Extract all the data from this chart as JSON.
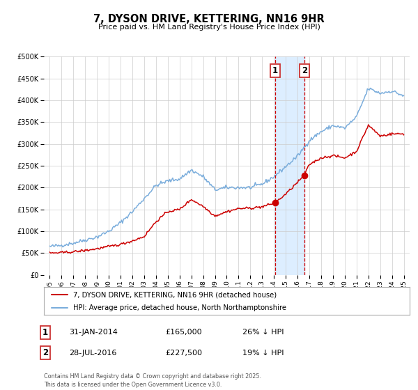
{
  "title": "7, DYSON DRIVE, KETTERING, NN16 9HR",
  "subtitle": "Price paid vs. HM Land Registry's House Price Index (HPI)",
  "background_color": "#ffffff",
  "plot_bg_color": "#ffffff",
  "grid_color": "#cccccc",
  "sale1_date": "31-JAN-2014",
  "sale1_price": 165000,
  "sale1_pct": "26% ↓ HPI",
  "sale2_date": "28-JUL-2016",
  "sale2_price": 227500,
  "sale2_pct": "19% ↓ HPI",
  "sale1_x": 2014.08,
  "sale2_x": 2016.57,
  "red_line_color": "#cc0000",
  "blue_line_color": "#7aaddc",
  "shade_color": "#ddeeff",
  "marker_color": "#cc0000",
  "legend1": "7, DYSON DRIVE, KETTERING, NN16 9HR (detached house)",
  "legend2": "HPI: Average price, detached house, North Northamptonshire",
  "footer": "Contains HM Land Registry data © Crown copyright and database right 2025.\nThis data is licensed under the Open Government Licence v3.0.",
  "ylim": [
    0,
    500000
  ],
  "xlim": [
    1994.5,
    2025.5
  ],
  "yticks": [
    0,
    50000,
    100000,
    150000,
    200000,
    250000,
    300000,
    350000,
    400000,
    450000,
    500000
  ],
  "ytick_labels": [
    "£0",
    "£50K",
    "£100K",
    "£150K",
    "£200K",
    "£250K",
    "£300K",
    "£350K",
    "£400K",
    "£450K",
    "£500K"
  ],
  "xticks": [
    1995,
    1996,
    1997,
    1998,
    1999,
    2000,
    2001,
    2002,
    2003,
    2004,
    2005,
    2006,
    2007,
    2008,
    2009,
    2010,
    2011,
    2012,
    2013,
    2014,
    2015,
    2016,
    2017,
    2018,
    2019,
    2020,
    2021,
    2022,
    2023,
    2024,
    2025
  ],
  "hpi_key_years": [
    1995,
    1996,
    1997,
    1998,
    1999,
    2000,
    2001,
    2002,
    2003,
    2004,
    2005,
    2006,
    2007,
    2008,
    2009,
    2010,
    2011,
    2012,
    2013,
    2014,
    2015,
    2016,
    2017,
    2018,
    2019,
    2020,
    2021,
    2022,
    2023,
    2024,
    2025
  ],
  "hpi_key_vals": [
    65000,
    68000,
    73000,
    80000,
    87000,
    100000,
    120000,
    145000,
    175000,
    205000,
    215000,
    220000,
    240000,
    225000,
    195000,
    200000,
    200000,
    200000,
    208000,
    225000,
    248000,
    272000,
    308000,
    328000,
    342000,
    336000,
    362000,
    427000,
    416000,
    421000,
    410000
  ],
  "red_key_years": [
    1995,
    1996,
    1997,
    1998,
    1999,
    2000,
    2001,
    2002,
    2003,
    2004,
    2005,
    2006,
    2007,
    2008,
    2009,
    2010,
    2011,
    2012,
    2013,
    2014.08,
    2015,
    2016.57,
    2017,
    2018,
    2019,
    2020,
    2021,
    2022,
    2023,
    2024,
    2025
  ],
  "red_key_vals": [
    50000,
    51000,
    53000,
    56000,
    60000,
    65000,
    70000,
    78000,
    88000,
    122000,
    145000,
    150000,
    173000,
    157000,
    135000,
    145000,
    152000,
    153000,
    156000,
    165000,
    185000,
    227500,
    253000,
    268000,
    273000,
    268000,
    283000,
    343000,
    318000,
    323000,
    323000
  ]
}
